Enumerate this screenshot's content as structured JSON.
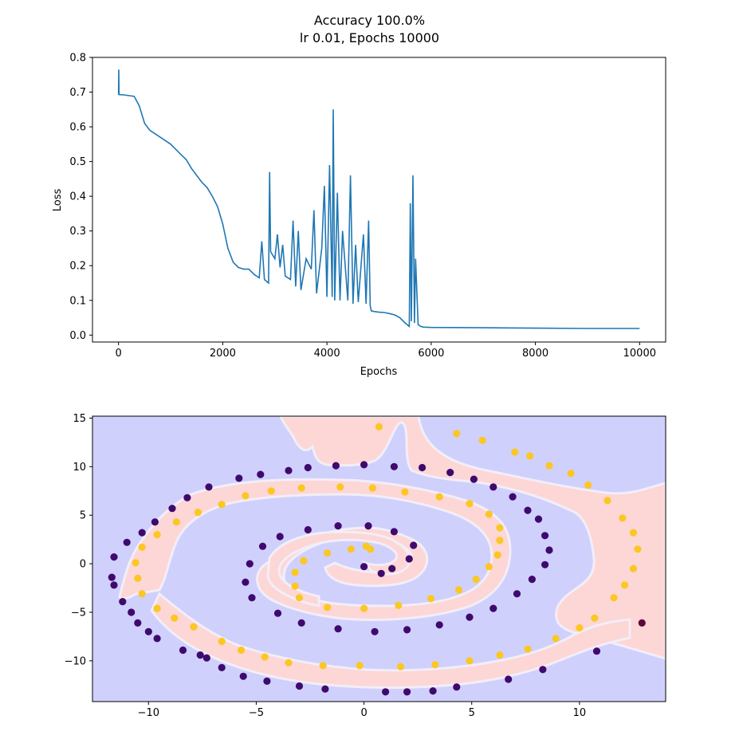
{
  "figure": {
    "title_line1": "Accuracy 100.0%",
    "title_line2": "lr 0.01, Epochs 10000"
  },
  "colors": {
    "loss_line": "#1f77b4",
    "region_blue": "#d0d0fc",
    "region_red": "#fdd6d6",
    "class0": "#3f0a6e",
    "class1": "#fbc723"
  },
  "chart_data": [
    {
      "type": "line",
      "title": "Accuracy 100.0%\nlr 0.01, Epochs 10000",
      "xlabel": "Epochs",
      "ylabel": "Loss",
      "xlim": [
        -500,
        10500
      ],
      "ylim": [
        -0.02,
        0.8
      ],
      "xticks": [
        0,
        2000,
        4000,
        6000,
        8000,
        10000
      ],
      "yticks": [
        0.0,
        0.1,
        0.2,
        0.3,
        0.4,
        0.5,
        0.6,
        0.7,
        0.8
      ],
      "grid": false,
      "series": [
        {
          "x": [
            0,
            5,
            10,
            100,
            300,
            400,
            500,
            600,
            800,
            1000,
            1100,
            1200,
            1300,
            1400,
            1500,
            1600,
            1700,
            1800,
            1900,
            2000,
            2100,
            2200,
            2300,
            2400,
            2500,
            2600,
            2700,
            2750,
            2800,
            2880,
            2900,
            2920,
            3000,
            3050,
            3100,
            3150,
            3200,
            3300,
            3350,
            3400,
            3450,
            3500,
            3600,
            3700,
            3750,
            3800,
            3900,
            3950,
            4000,
            4050,
            4100,
            4120,
            4150,
            4200,
            4250,
            4300,
            4400,
            4450,
            4500,
            4550,
            4600,
            4700,
            4750,
            4800,
            4830,
            4850,
            4900,
            5000,
            5100,
            5200,
            5300,
            5400,
            5500,
            5580,
            5600,
            5620,
            5650,
            5680,
            5700,
            5750,
            5800,
            5850,
            6000,
            7000,
            8000,
            9000,
            10000
          ],
          "values": [
            0.693,
            0.765,
            0.693,
            0.692,
            0.688,
            0.66,
            0.61,
            0.59,
            0.57,
            0.55,
            0.535,
            0.52,
            0.505,
            0.48,
            0.46,
            0.44,
            0.425,
            0.4,
            0.37,
            0.32,
            0.25,
            0.21,
            0.195,
            0.19,
            0.19,
            0.175,
            0.165,
            0.27,
            0.16,
            0.15,
            0.47,
            0.24,
            0.22,
            0.29,
            0.195,
            0.26,
            0.17,
            0.16,
            0.33,
            0.14,
            0.3,
            0.13,
            0.22,
            0.19,
            0.36,
            0.12,
            0.25,
            0.43,
            0.11,
            0.49,
            0.11,
            0.65,
            0.1,
            0.41,
            0.1,
            0.3,
            0.1,
            0.46,
            0.09,
            0.26,
            0.095,
            0.29,
            0.09,
            0.33,
            0.085,
            0.07,
            0.068,
            0.066,
            0.065,
            0.062,
            0.058,
            0.05,
            0.035,
            0.025,
            0.38,
            0.04,
            0.46,
            0.035,
            0.22,
            0.03,
            0.025,
            0.023,
            0.022,
            0.021,
            0.02,
            0.019,
            0.019
          ]
        }
      ]
    },
    {
      "type": "scatter",
      "title": "",
      "xlabel": "",
      "ylabel": "",
      "xlim": [
        -12.6,
        14.0
      ],
      "ylim": [
        -14.2,
        15.2
      ],
      "xticks": [
        -10,
        -5,
        0,
        5,
        10
      ],
      "yticks": [
        -10,
        -5,
        0,
        5,
        10,
        15
      ],
      "grid": false,
      "background": "decision regions (blue = class 0, red = class 1)",
      "series": [
        {
          "name": "",
          "class": 0,
          "points": [
            [
              -11.6,
              0.7
            ],
            [
              -11.7,
              -1.4
            ],
            [
              -11.6,
              -2.2
            ],
            [
              -11.2,
              -3.9
            ],
            [
              -10.8,
              -5.0
            ],
            [
              -10.5,
              -6.1
            ],
            [
              -10.0,
              -7.0
            ],
            [
              -9.6,
              -7.7
            ],
            [
              -8.4,
              -8.9
            ],
            [
              -7.6,
              -9.4
            ],
            [
              -7.3,
              -9.7
            ],
            [
              -6.6,
              -10.7
            ],
            [
              -5.6,
              -11.6
            ],
            [
              -4.5,
              -12.1
            ],
            [
              -3.0,
              -12.6
            ],
            [
              -1.8,
              -12.9
            ],
            [
              1.0,
              -13.2
            ],
            [
              2.0,
              -13.2
            ],
            [
              3.2,
              -13.1
            ],
            [
              4.3,
              -12.7
            ],
            [
              6.7,
              -11.9
            ],
            [
              8.3,
              -10.9
            ],
            [
              10.8,
              -9.0
            ],
            [
              -11.0,
              2.2
            ],
            [
              -10.3,
              3.2
            ],
            [
              -9.7,
              4.3
            ],
            [
              -8.9,
              5.7
            ],
            [
              -8.2,
              6.8
            ],
            [
              -7.2,
              7.9
            ],
            [
              -5.8,
              8.8
            ],
            [
              -4.8,
              9.2
            ],
            [
              -3.5,
              9.6
            ],
            [
              -2.6,
              9.9
            ],
            [
              -1.3,
              10.1
            ],
            [
              0.0,
              10.2
            ],
            [
              1.4,
              10.0
            ],
            [
              2.7,
              9.9
            ],
            [
              4.0,
              9.4
            ],
            [
              5.1,
              8.7
            ],
            [
              6.0,
              7.9
            ],
            [
              6.9,
              6.9
            ],
            [
              7.6,
              5.5
            ],
            [
              8.1,
              4.6
            ],
            [
              8.4,
              2.9
            ],
            [
              8.6,
              1.4
            ],
            [
              8.4,
              -0.1
            ],
            [
              7.8,
              -1.6
            ],
            [
              7.1,
              -3.1
            ],
            [
              6.0,
              -4.6
            ],
            [
              4.9,
              -5.5
            ],
            [
              3.5,
              -6.3
            ],
            [
              2.0,
              -6.8
            ],
            [
              0.5,
              -7.0
            ],
            [
              -1.2,
              -6.7
            ],
            [
              -2.9,
              -6.1
            ],
            [
              -4.0,
              -5.1
            ],
            [
              -5.2,
              -3.5
            ],
            [
              -5.5,
              -1.9
            ],
            [
              -5.3,
              0.0
            ],
            [
              -4.7,
              1.8
            ],
            [
              -3.9,
              2.8
            ],
            [
              -2.6,
              3.5
            ],
            [
              -1.2,
              3.9
            ],
            [
              0.2,
              3.9
            ],
            [
              1.4,
              3.3
            ],
            [
              2.3,
              1.9
            ],
            [
              2.1,
              0.5
            ],
            [
              1.3,
              -0.5
            ],
            [
              0.8,
              -1.0
            ],
            [
              0.0,
              -0.3
            ]
          ]
        },
        {
          "name": "",
          "class": 0,
          "points": [
            [
              12.9,
              -6.1
            ]
          ]
        },
        {
          "name": "",
          "class": 1,
          "points": [
            [
              0.7,
              14.1
            ],
            [
              4.3,
              13.4
            ],
            [
              5.5,
              12.7
            ],
            [
              7.0,
              11.5
            ],
            [
              7.7,
              11.1
            ],
            [
              8.6,
              10.1
            ],
            [
              9.6,
              9.3
            ],
            [
              10.4,
              8.1
            ],
            [
              11.3,
              6.5
            ],
            [
              12.0,
              4.7
            ],
            [
              12.5,
              3.2
            ],
            [
              12.7,
              1.5
            ],
            [
              12.5,
              -0.5
            ],
            [
              12.1,
              -2.2
            ],
            [
              11.6,
              -3.5
            ],
            [
              10.7,
              -5.6
            ],
            [
              10.0,
              -6.6
            ],
            [
              8.9,
              -7.7
            ],
            [
              7.6,
              -8.8
            ],
            [
              6.3,
              -9.4
            ],
            [
              4.9,
              -10.0
            ],
            [
              3.3,
              -10.4
            ],
            [
              1.7,
              -10.6
            ],
            [
              -0.2,
              -10.5
            ],
            [
              -1.9,
              -10.5
            ],
            [
              -3.5,
              -10.2
            ],
            [
              -4.6,
              -9.6
            ],
            [
              -5.7,
              -8.9
            ],
            [
              -6.6,
              -8.0
            ],
            [
              -7.9,
              -6.5
            ],
            [
              -8.8,
              -5.6
            ],
            [
              -9.6,
              -4.6
            ],
            [
              -10.3,
              -3.1
            ],
            [
              -10.5,
              -1.5
            ],
            [
              -10.6,
              0.1
            ],
            [
              -10.3,
              1.7
            ],
            [
              -9.6,
              3.0
            ],
            [
              -8.7,
              4.3
            ],
            [
              -7.7,
              5.3
            ],
            [
              -6.6,
              6.1
            ],
            [
              -5.5,
              7.0
            ],
            [
              -4.3,
              7.5
            ],
            [
              -2.9,
              7.8
            ],
            [
              -1.1,
              7.9
            ],
            [
              0.4,
              7.8
            ],
            [
              1.9,
              7.4
            ],
            [
              3.5,
              6.9
            ],
            [
              4.9,
              6.2
            ],
            [
              5.8,
              5.1
            ],
            [
              6.3,
              3.7
            ],
            [
              6.3,
              2.4
            ],
            [
              6.2,
              0.9
            ],
            [
              5.8,
              -0.3
            ],
            [
              5.2,
              -1.6
            ],
            [
              4.4,
              -2.7
            ],
            [
              3.1,
              -3.6
            ],
            [
              1.6,
              -4.3
            ],
            [
              0.0,
              -4.6
            ],
            [
              -1.7,
              -4.5
            ],
            [
              -3.0,
              -3.5
            ],
            [
              -3.2,
              -2.3
            ],
            [
              -3.2,
              -0.9
            ],
            [
              -2.8,
              0.3
            ],
            [
              -1.7,
              1.1
            ],
            [
              -0.6,
              1.5
            ],
            [
              0.1,
              1.8
            ],
            [
              0.3,
              1.5
            ]
          ]
        }
      ]
    }
  ]
}
